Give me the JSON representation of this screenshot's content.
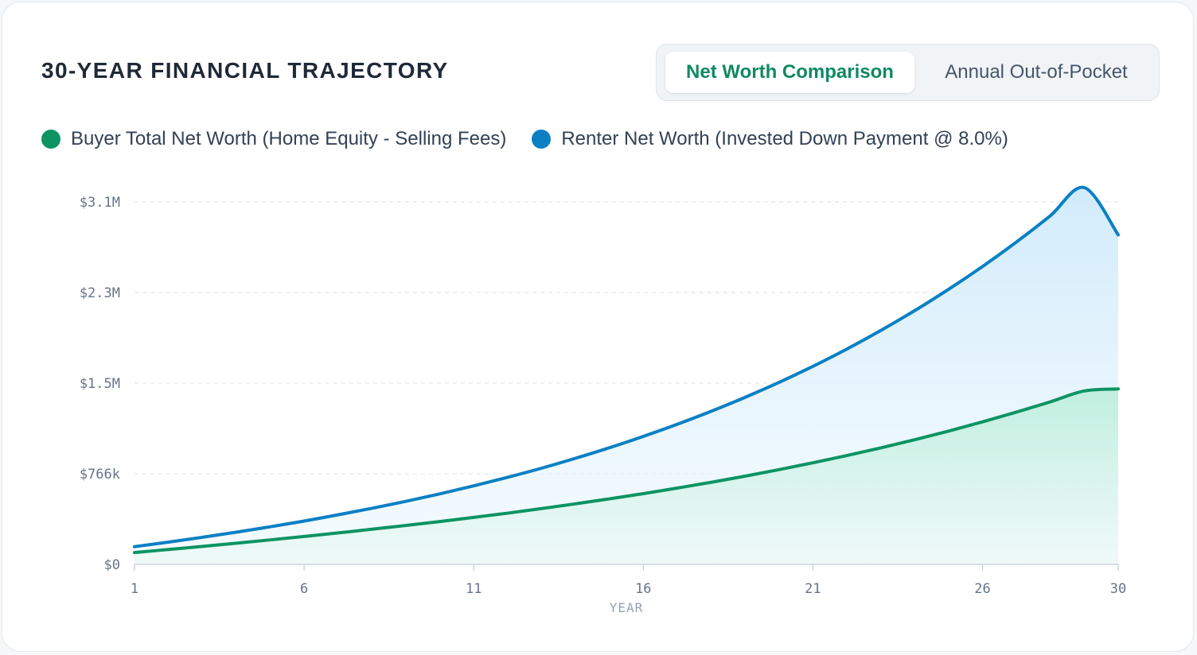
{
  "header": {
    "title": "30-YEAR FINANCIAL TRAJECTORY"
  },
  "tabs": {
    "active_label": "Net Worth Comparison",
    "inactive_label": "Annual Out-of-Pocket"
  },
  "colors": {
    "buyer": "#0c9463",
    "renter": "#0a80c4",
    "accent_text": "#0f8a5f"
  },
  "chart_data": {
    "type": "area",
    "title": "30-YEAR FINANCIAL TRAJECTORY",
    "xlabel": "YEAR",
    "ylabel": "",
    "x": [
      1,
      2,
      3,
      4,
      5,
      6,
      7,
      8,
      9,
      10,
      11,
      12,
      13,
      14,
      15,
      16,
      17,
      18,
      19,
      20,
      21,
      22,
      23,
      24,
      25,
      26,
      27,
      28,
      29,
      30
    ],
    "xticks": [
      1,
      6,
      11,
      16,
      21,
      26,
      30
    ],
    "xtick_labels": [
      "1",
      "6",
      "11",
      "16",
      "21",
      "26",
      "30"
    ],
    "ylim": [
      0,
      3064000
    ],
    "yticks": [
      0,
      766000,
      1532000,
      2298000,
      3064000
    ],
    "ytick_labels": [
      "$0",
      "$766k",
      "$1.5M",
      "$2.3M",
      "$3.1M"
    ],
    "grid": true,
    "legend_position": "top-left",
    "series": [
      {
        "name": "Buyer Total Net Worth (Home Equity - Selling Fees)",
        "color": "#0c9463",
        "values": [
          100000,
          126000,
          152000,
          179000,
          207000,
          236000,
          266000,
          297000,
          329000,
          362000,
          397000,
          433000,
          472000,
          512000,
          554000,
          598000,
          645000,
          694000,
          746000,
          801000,
          859000,
          920000,
          985000,
          1054000,
          1127000,
          1205000,
          1287000,
          1374000,
          1466000,
          1483000
        ]
      },
      {
        "name": "Renter Net Worth (Invested Down Payment @ 8.0%)",
        "color": "#0a80c4",
        "values": [
          150000,
          188000,
          229000,
          272000,
          318000,
          366000,
          419000,
          474000,
          533000,
          596000,
          664000,
          736000,
          813000,
          897000,
          986000,
          1082000,
          1184000,
          1294000,
          1412000,
          1538000,
          1674000,
          1820000,
          1977000,
          2145000,
          2325000,
          2518000,
          2725000,
          2947000,
          3185000,
          2785000
        ]
      }
    ]
  }
}
